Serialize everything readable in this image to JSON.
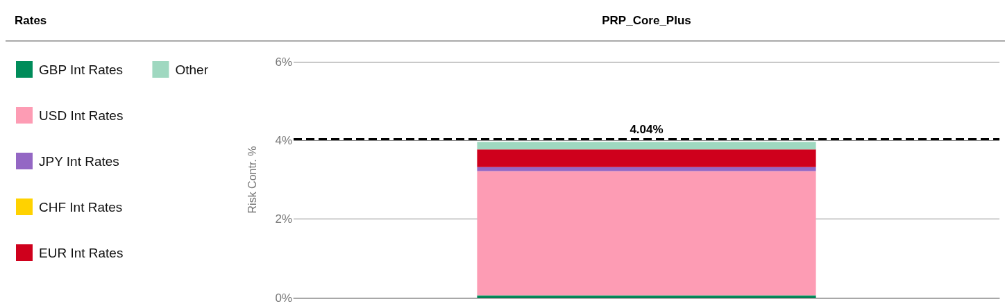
{
  "chart_data": {
    "type": "bar",
    "title": "PRP_Core_Plus",
    "legend_title": "Rates",
    "ylabel": "Risk Contr. %",
    "categories": [
      null
    ],
    "stacked": true,
    "series": [
      {
        "name": "GBP Int Rates",
        "color": "#008c5a",
        "values": [
          0.06
        ]
      },
      {
        "name": "USD Int Rates",
        "color": "#fd9cb4",
        "values": [
          3.16
        ]
      },
      {
        "name": "JPY Int Rates",
        "color": "#9467c4",
        "values": [
          0.1
        ]
      },
      {
        "name": "CHF Int Rates",
        "color": "#ffd200",
        "values": [
          0
        ]
      },
      {
        "name": "EUR Int Rates",
        "color": "#cf001c",
        "values": [
          0.45
        ]
      },
      {
        "name": "Other",
        "color": "#9fd8c0",
        "values": [
          0.19
        ]
      }
    ],
    "ylim": [
      0,
      6
    ],
    "yticks": [
      {
        "value": 0,
        "label": "0%"
      },
      {
        "value": 2,
        "label": "2%"
      },
      {
        "value": 4,
        "label": "4%"
      },
      {
        "value": 6,
        "label": "6%"
      }
    ],
    "ref_lines": [
      {
        "axis": "y",
        "value": 4.04,
        "label": "4.04%",
        "color": "#000000",
        "line_style": "dashed"
      }
    ],
    "grid": "y",
    "legend": "left"
  }
}
